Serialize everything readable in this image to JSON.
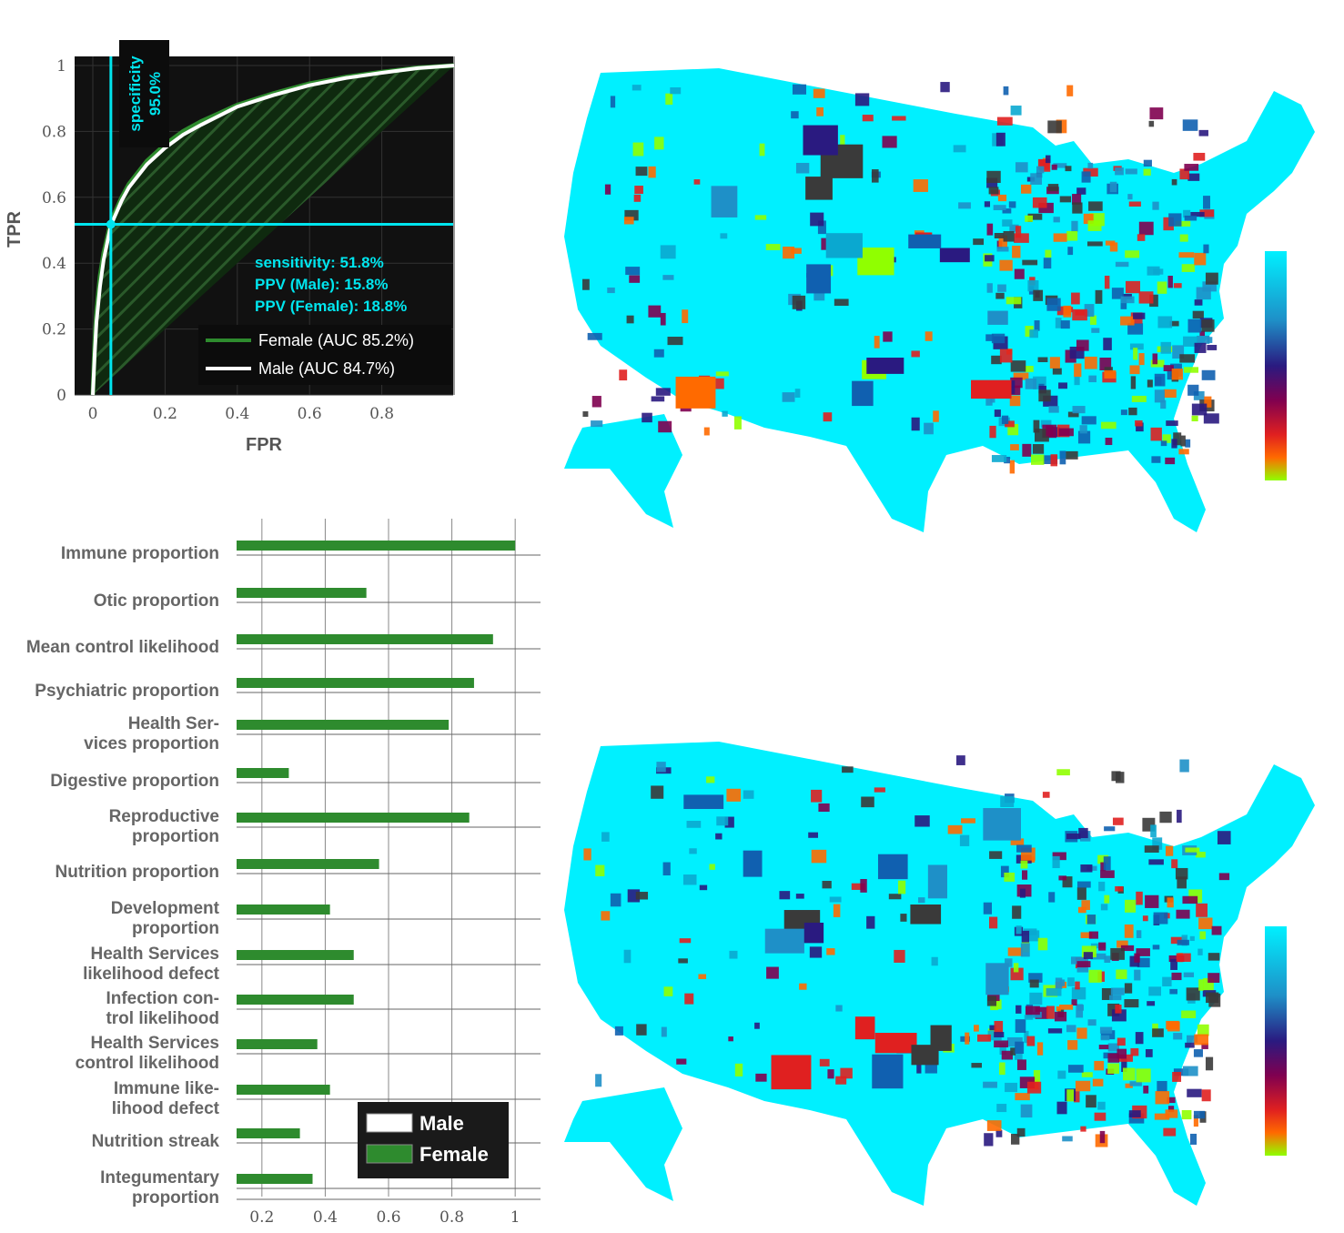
{
  "roc": {
    "xlabel": "FPR",
    "ylabel": "TPR",
    "xticks": [
      "0",
      "0.2",
      "0.4",
      "0.6",
      "0.8"
    ],
    "yticks": [
      "0",
      "0.2",
      "0.4",
      "0.6",
      "0.8",
      "1"
    ],
    "specificity_label": "specificity",
    "specificity_value": "95.0%",
    "sensitivity_text": "sensitivity: 51.8%",
    "ppv_male_text": "PPV (Male): 15.8%",
    "ppv_female_text": "PPV (Female): 18.8%",
    "legend": [
      {
        "label": "Female (AUC 85.2%)",
        "color": "#2e8b2e"
      },
      {
        "label": "Male (AUC 84.7%)",
        "color": "#ffffff"
      }
    ],
    "operating_point": {
      "fpr": 0.05,
      "tpr": 0.518
    },
    "background_color": "#111111",
    "accent_color": "#00e5ee"
  },
  "chart_data": [
    {
      "type": "line",
      "xlabel": "FPR",
      "ylabel": "TPR",
      "xlim": [
        0,
        1
      ],
      "ylim": [
        0,
        1
      ],
      "grid": true,
      "legend_position": "bottom-right",
      "series": [
        {
          "name": "Female (AUC 85.2%)",
          "color": "#2e8b2e",
          "x": [
            0,
            0.005,
            0.01,
            0.02,
            0.03,
            0.05,
            0.08,
            0.1,
            0.15,
            0.2,
            0.25,
            0.3,
            0.4,
            0.5,
            0.6,
            0.7,
            0.8,
            0.9,
            1.0
          ],
          "y": [
            0,
            0.15,
            0.25,
            0.36,
            0.43,
            0.525,
            0.6,
            0.64,
            0.71,
            0.76,
            0.8,
            0.83,
            0.88,
            0.915,
            0.945,
            0.965,
            0.98,
            0.993,
            1.0
          ]
        },
        {
          "name": "Male (AUC 84.7%)",
          "color": "#ffffff",
          "x": [
            0,
            0.005,
            0.01,
            0.02,
            0.03,
            0.05,
            0.08,
            0.1,
            0.15,
            0.2,
            0.25,
            0.3,
            0.4,
            0.5,
            0.6,
            0.7,
            0.8,
            0.9,
            1.0
          ],
          "y": [
            0,
            0.12,
            0.22,
            0.33,
            0.41,
            0.515,
            0.59,
            0.63,
            0.7,
            0.75,
            0.79,
            0.82,
            0.875,
            0.91,
            0.94,
            0.962,
            0.978,
            0.992,
            1.0
          ]
        }
      ],
      "annotations": [
        "specificity 95.0%",
        "sensitivity: 51.8%",
        "PPV (Male): 15.8%",
        "PPV (Female): 18.8%"
      ]
    },
    {
      "type": "bar",
      "orientation": "horizontal",
      "xlim": [
        0.12,
        1.08
      ],
      "grid": true,
      "legend_position": "bottom-right",
      "categories": [
        "Immune proportion",
        "Otic proportion",
        "Mean control likelihood",
        "Psychiatric proportion",
        "Health Ser- vices proportion",
        "Digestive proportion",
        "Reproductive proportion",
        "Nutrition proportion",
        "Development proportion",
        "Health Services likelihood defect",
        "Infection con- trol likelihood",
        "Health Services control likelihood",
        "Immune like- lihood defect",
        "Nutrition streak",
        "Integumentary proportion"
      ],
      "series": [
        {
          "name": "Male",
          "color": "#ffffff",
          "values": [
            0,
            0,
            0,
            0,
            0,
            0,
            0,
            0,
            0,
            0,
            0,
            0,
            0,
            0,
            0
          ]
        },
        {
          "name": "Female",
          "color": "#2e8b2e",
          "values": [
            1.0,
            0.53,
            0.93,
            0.87,
            0.79,
            0.285,
            0.855,
            0.57,
            0.415,
            0.49,
            0.49,
            0.375,
            0.415,
            0.32,
            0.36
          ]
        }
      ]
    }
  ],
  "bars": {
    "labels": [
      [
        "Immune proportion"
      ],
      [
        "Otic proportion"
      ],
      [
        "Mean control likelihood"
      ],
      [
        "Psychiatric proportion"
      ],
      [
        "Health Ser-",
        "vices proportion"
      ],
      [
        "Digestive proportion"
      ],
      [
        "Reproductive",
        "proportion"
      ],
      [
        "Nutrition proportion"
      ],
      [
        "Development",
        "proportion"
      ],
      [
        "Health Services",
        "likelihood defect"
      ],
      [
        "Infection con-",
        "trol likelihood"
      ],
      [
        "Health Services",
        "control likelihood"
      ],
      [
        "Immune like-",
        "lihood defect"
      ],
      [
        "Nutrition streak"
      ],
      [
        "Integumentary",
        "proportion"
      ]
    ],
    "xticks": [
      "0.2",
      "0.4",
      "0.6",
      "0.8",
      "1"
    ],
    "legend": [
      {
        "label": "Male",
        "color": "#ffffff"
      },
      {
        "label": "Female",
        "color": "#2e8b2e"
      }
    ]
  },
  "maps": {
    "base_color": "#00f0ff",
    "colorbar": [
      "#00f0ff",
      "#1e90c8",
      "#2a1a80",
      "#800050",
      "#e02020",
      "#ff6a00",
      "#90ff00"
    ],
    "missing_color": "#3a3a3a"
  }
}
